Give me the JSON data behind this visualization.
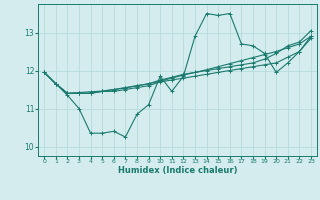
{
  "title": "",
  "xlabel": "Humidex (Indice chaleur)",
  "ylabel": "",
  "bg_color": "#d4ecee",
  "line_color": "#1a7a6e",
  "grid_color": "#b0d8d8",
  "xlim": [
    -0.5,
    23.5
  ],
  "ylim": [
    9.75,
    13.75
  ],
  "yticks": [
    10,
    11,
    12,
    13
  ],
  "xticks": [
    0,
    1,
    2,
    3,
    4,
    5,
    6,
    7,
    8,
    9,
    10,
    11,
    12,
    13,
    14,
    15,
    16,
    17,
    18,
    19,
    20,
    21,
    22,
    23
  ],
  "line1_x": [
    0,
    1,
    2,
    3,
    4,
    5,
    6,
    7,
    8,
    9,
    10,
    11,
    12,
    13,
    14,
    15,
    16,
    17,
    18,
    19,
    20,
    21,
    22,
    23
  ],
  "line1_y": [
    11.95,
    11.65,
    11.35,
    11.0,
    10.35,
    10.35,
    10.4,
    10.25,
    10.85,
    11.1,
    11.85,
    11.45,
    11.85,
    12.9,
    13.5,
    13.45,
    13.5,
    12.7,
    12.65,
    12.45,
    11.95,
    12.2,
    12.5,
    12.9
  ],
  "line2_x": [
    0,
    1,
    2,
    3,
    4,
    5,
    6,
    7,
    8,
    9,
    10,
    11,
    12,
    13,
    14,
    15,
    16,
    17,
    18,
    19,
    20,
    21,
    22,
    23
  ],
  "line2_y": [
    11.95,
    11.65,
    11.4,
    11.4,
    11.4,
    11.45,
    11.45,
    11.5,
    11.55,
    11.6,
    11.7,
    11.75,
    11.8,
    11.85,
    11.9,
    11.95,
    12.0,
    12.05,
    12.1,
    12.15,
    12.2,
    12.35,
    12.5,
    12.85
  ],
  "line3_x": [
    0,
    1,
    2,
    3,
    4,
    5,
    6,
    7,
    8,
    9,
    10,
    11,
    12,
    13,
    14,
    15,
    16,
    17,
    18,
    19,
    20,
    21,
    22,
    23
  ],
  "line3_y": [
    11.95,
    11.65,
    11.4,
    11.4,
    11.4,
    11.45,
    11.5,
    11.55,
    11.6,
    11.65,
    11.75,
    11.82,
    11.9,
    11.95,
    12.0,
    12.05,
    12.1,
    12.15,
    12.2,
    12.3,
    12.45,
    12.65,
    12.75,
    13.05
  ],
  "line4_x": [
    0,
    1,
    2,
    3,
    4,
    5,
    6,
    7,
    8,
    9,
    10,
    11,
    12,
    13,
    14,
    15,
    16,
    17,
    18,
    19,
    20,
    21,
    22,
    23
  ],
  "line4_y": [
    11.95,
    11.65,
    11.4,
    11.42,
    11.44,
    11.46,
    11.5,
    11.54,
    11.6,
    11.65,
    11.72,
    11.8,
    11.88,
    11.95,
    12.02,
    12.1,
    12.18,
    12.26,
    12.34,
    12.42,
    12.5,
    12.6,
    12.7,
    12.9
  ],
  "marker": "+",
  "markersize": 3,
  "linewidth": 0.8
}
